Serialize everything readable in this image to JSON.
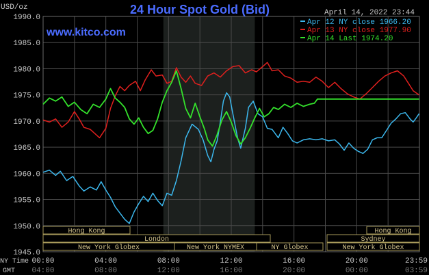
{
  "chart_data": {
    "type": "line",
    "title": "24 Hour Spot Gold (Bid)",
    "watermark": "www.kitco.com",
    "timestamp": "April 14, 2022 23:44",
    "ylabel": "USD/oz",
    "ylim": [
      1945,
      1990
    ],
    "yticks": [
      "1990.0",
      "1985.0",
      "1980.0",
      "1975.0",
      "1970.0",
      "1965.0",
      "1960.0",
      "1955.0",
      "1950.0",
      "1945.0"
    ],
    "x_row_labels": {
      "ny": "NY Time",
      "gmt": "GMT"
    },
    "xticks_ny": [
      "00:00",
      "04:00",
      "08:00",
      "12:00",
      "16:00",
      "20:00",
      "23:59"
    ],
    "xticks_gmt": [
      "04:00",
      "08:00",
      "12:00",
      "16:00",
      "20:00",
      "00:00",
      "03:59"
    ],
    "xlim_hours": [
      0,
      24
    ],
    "legend_position": "top-right",
    "colors": {
      "background": "#000000",
      "grid": "#4a4a4a",
      "axis_text": "#c8c8c8",
      "title": "#4b6cff",
      "session_shade": "#1c201e"
    },
    "series": [
      {
        "name": "Apr 12 NY close 1966.20",
        "color": "#3cb8ee",
        "points": [
          [
            0,
            1960.2
          ],
          [
            0.4,
            1960.6
          ],
          [
            0.8,
            1959.6
          ],
          [
            1.1,
            1960.4
          ],
          [
            1.5,
            1958.6
          ],
          [
            1.9,
            1959.4
          ],
          [
            2.3,
            1957.6
          ],
          [
            2.6,
            1956.6
          ],
          [
            3,
            1957.4
          ],
          [
            3.4,
            1956.8
          ],
          [
            3.7,
            1958.4
          ],
          [
            4,
            1956.8
          ],
          [
            4.3,
            1955.4
          ],
          [
            4.6,
            1953.6
          ],
          [
            4.9,
            1952.4
          ],
          [
            5.2,
            1951.2
          ],
          [
            5.5,
            1950.4
          ],
          [
            5.8,
            1952.6
          ],
          [
            6.1,
            1954.2
          ],
          [
            6.4,
            1955.6
          ],
          [
            6.7,
            1954.6
          ],
          [
            7,
            1956.2
          ],
          [
            7.3,
            1954.8
          ],
          [
            7.6,
            1953.8
          ],
          [
            7.9,
            1956.2
          ],
          [
            8.2,
            1955.8
          ],
          [
            8.5,
            1958.6
          ],
          [
            8.8,
            1962.4
          ],
          [
            9.1,
            1966.8
          ],
          [
            9.5,
            1969.4
          ],
          [
            9.9,
            1968.4
          ],
          [
            10.2,
            1966.4
          ],
          [
            10.5,
            1963.4
          ],
          [
            10.7,
            1962.2
          ],
          [
            10.9,
            1964.6
          ],
          [
            11.1,
            1966.2
          ],
          [
            11.3,
            1969.8
          ],
          [
            11.5,
            1973.8
          ],
          [
            11.7,
            1975.4
          ],
          [
            11.9,
            1974.6
          ],
          [
            12.1,
            1971.4
          ],
          [
            12.4,
            1966.8
          ],
          [
            12.6,
            1964.8
          ],
          [
            12.9,
            1968.6
          ],
          [
            13.1,
            1972.6
          ],
          [
            13.4,
            1973.8
          ],
          [
            13.7,
            1971.4
          ],
          [
            14,
            1970.8
          ],
          [
            14.3,
            1968.6
          ],
          [
            14.6,
            1968.4
          ],
          [
            15,
            1966.8
          ],
          [
            15.3,
            1968.8
          ],
          [
            15.6,
            1967.6
          ],
          [
            15.9,
            1966.2
          ],
          [
            16.2,
            1965.8
          ],
          [
            16.6,
            1966.4
          ],
          [
            17,
            1966.6
          ],
          [
            17.4,
            1966.4
          ],
          [
            17.8,
            1966.6
          ],
          [
            18.2,
            1966.2
          ],
          [
            18.6,
            1966.4
          ],
          [
            18.9,
            1965.6
          ],
          [
            19.2,
            1964.4
          ],
          [
            19.5,
            1965.8
          ],
          [
            19.8,
            1964.8
          ],
          [
            20.1,
            1964.2
          ],
          [
            20.4,
            1963.8
          ],
          [
            20.7,
            1964.6
          ],
          [
            21,
            1966.4
          ],
          [
            21.3,
            1966.8
          ],
          [
            21.6,
            1966.8
          ],
          [
            21.9,
            1968.2
          ],
          [
            22.2,
            1969.6
          ],
          [
            22.5,
            1970.4
          ],
          [
            22.8,
            1971.4
          ],
          [
            23.1,
            1971.6
          ],
          [
            23.4,
            1970.4
          ],
          [
            23.6,
            1969.8
          ],
          [
            23.8,
            1970.6
          ],
          [
            23.98,
            1971.4
          ]
        ]
      },
      {
        "name": "Apr 13 NY close 1977.90",
        "color": "#e0201e",
        "points": [
          [
            0,
            1970.2
          ],
          [
            0.4,
            1969.8
          ],
          [
            0.8,
            1970.4
          ],
          [
            1.2,
            1968.8
          ],
          [
            1.6,
            1969.8
          ],
          [
            2,
            1971.8
          ],
          [
            2.3,
            1970.4
          ],
          [
            2.6,
            1968.8
          ],
          [
            3,
            1968.4
          ],
          [
            3.3,
            1967.6
          ],
          [
            3.6,
            1966.8
          ],
          [
            4,
            1968.6
          ],
          [
            4.3,
            1972.4
          ],
          [
            4.6,
            1974.8
          ],
          [
            4.9,
            1976.6
          ],
          [
            5.2,
            1975.8
          ],
          [
            5.5,
            1976.8
          ],
          [
            5.9,
            1977.6
          ],
          [
            6.2,
            1975.8
          ],
          [
            6.5,
            1977.8
          ],
          [
            6.9,
            1979.8
          ],
          [
            7.2,
            1978.6
          ],
          [
            7.6,
            1978.8
          ],
          [
            7.9,
            1977.2
          ],
          [
            8.2,
            1977.6
          ],
          [
            8.5,
            1980.2
          ],
          [
            8.8,
            1978.4
          ],
          [
            9.1,
            1977.4
          ],
          [
            9.4,
            1978.6
          ],
          [
            9.7,
            1977.2
          ],
          [
            10.1,
            1976.8
          ],
          [
            10.5,
            1978.6
          ],
          [
            10.9,
            1979.2
          ],
          [
            11.3,
            1978.4
          ],
          [
            11.7,
            1979.6
          ],
          [
            12.1,
            1980.4
          ],
          [
            12.5,
            1980.6
          ],
          [
            12.9,
            1979.2
          ],
          [
            13.3,
            1979.8
          ],
          [
            13.6,
            1979.4
          ],
          [
            14,
            1980.4
          ],
          [
            14.3,
            1981.2
          ],
          [
            14.6,
            1979.6
          ],
          [
            15,
            1979.8
          ],
          [
            15.4,
            1978.6
          ],
          [
            15.8,
            1978.2
          ],
          [
            16.2,
            1977.4
          ],
          [
            16.6,
            1977.6
          ],
          [
            17,
            1977.4
          ],
          [
            17.4,
            1978.4
          ],
          [
            17.8,
            1977.6
          ],
          [
            18.2,
            1976.4
          ],
          [
            18.6,
            1977.4
          ],
          [
            19,
            1976.2
          ],
          [
            19.4,
            1975.2
          ],
          [
            19.8,
            1974.6
          ],
          [
            20.2,
            1974.2
          ],
          [
            20.6,
            1975.2
          ],
          [
            21,
            1976.4
          ],
          [
            21.4,
            1977.6
          ],
          [
            21.8,
            1978.6
          ],
          [
            22.2,
            1979.2
          ],
          [
            22.6,
            1979.6
          ],
          [
            23,
            1978.6
          ],
          [
            23.3,
            1977.2
          ],
          [
            23.6,
            1975.8
          ],
          [
            23.98,
            1975.0
          ]
        ]
      },
      {
        "name": "Apr 14 Last 1974.20",
        "color": "#34e22c",
        "points": [
          [
            0,
            1973.2
          ],
          [
            0.4,
            1974.4
          ],
          [
            0.8,
            1973.8
          ],
          [
            1.2,
            1974.6
          ],
          [
            1.6,
            1972.8
          ],
          [
            2,
            1973.6
          ],
          [
            2.4,
            1972.2
          ],
          [
            2.8,
            1971.4
          ],
          [
            3.2,
            1973.2
          ],
          [
            3.6,
            1972.6
          ],
          [
            4,
            1974.2
          ],
          [
            4.3,
            1976.2
          ],
          [
            4.6,
            1974.4
          ],
          [
            4.9,
            1973.6
          ],
          [
            5.2,
            1972.6
          ],
          [
            5.5,
            1970.4
          ],
          [
            5.8,
            1969.4
          ],
          [
            6.1,
            1970.6
          ],
          [
            6.4,
            1968.8
          ],
          [
            6.7,
            1967.6
          ],
          [
            7,
            1968.2
          ],
          [
            7.3,
            1970.4
          ],
          [
            7.6,
            1973.6
          ],
          [
            7.9,
            1975.8
          ],
          [
            8.2,
            1977.4
          ],
          [
            8.5,
            1979.6
          ],
          [
            8.8,
            1976.2
          ],
          [
            9.1,
            1972.4
          ],
          [
            9.4,
            1970.6
          ],
          [
            9.7,
            1973.4
          ],
          [
            10,
            1970.8
          ],
          [
            10.3,
            1968.4
          ],
          [
            10.5,
            1966.4
          ],
          [
            10.8,
            1965.2
          ],
          [
            11.1,
            1967.4
          ],
          [
            11.4,
            1970.2
          ],
          [
            11.7,
            1971.8
          ],
          [
            12,
            1969.8
          ],
          [
            12.3,
            1967.2
          ],
          [
            12.6,
            1965.6
          ],
          [
            12.9,
            1966.8
          ],
          [
            13.2,
            1968.6
          ],
          [
            13.5,
            1970.6
          ],
          [
            13.8,
            1972.4
          ],
          [
            14.1,
            1970.8
          ],
          [
            14.4,
            1971.4
          ],
          [
            14.7,
            1972.6
          ],
          [
            15,
            1972.2
          ],
          [
            15.4,
            1973.2
          ],
          [
            15.8,
            1972.6
          ],
          [
            16.2,
            1973.4
          ],
          [
            16.6,
            1972.8
          ],
          [
            17,
            1973.2
          ],
          [
            17.3,
            1973.4
          ],
          [
            17.5,
            1974.2
          ],
          [
            23.98,
            1974.2
          ]
        ]
      }
    ],
    "sessions": [
      {
        "label": "Hong Kong",
        "start_gmt": "00:00",
        "end_gmt": "08:00",
        "row": 1
      },
      {
        "label": "London",
        "start_gmt": "00:00",
        "end_gmt": "12:00",
        "row": 2
      },
      {
        "label": "New York Globex",
        "start_gmt": "00:00",
        "end_gmt": "12:00",
        "row": 3
      },
      {
        "label": "New York NYMEX",
        "start_gmt": "12:00",
        "end_gmt": "17:30",
        "row": 3
      },
      {
        "label": "NY Globex",
        "start_gmt": "17:30",
        "end_gmt": "21:00",
        "row": 3
      },
      {
        "label": "Hong Kong",
        "start_gmt": "00:00",
        "end_gmt": "04:00",
        "row": 1,
        "side": "right"
      },
      {
        "label": "Sydney",
        "start_gmt": "22:00",
        "end_gmt": "04:00",
        "row": 2,
        "side": "right"
      },
      {
        "label": "New York Globex",
        "start_gmt": "22:00",
        "end_gmt": "04:00",
        "row": 3,
        "side": "right"
      }
    ],
    "shaded_window_hours": [
      7.67,
      13.5
    ]
  }
}
